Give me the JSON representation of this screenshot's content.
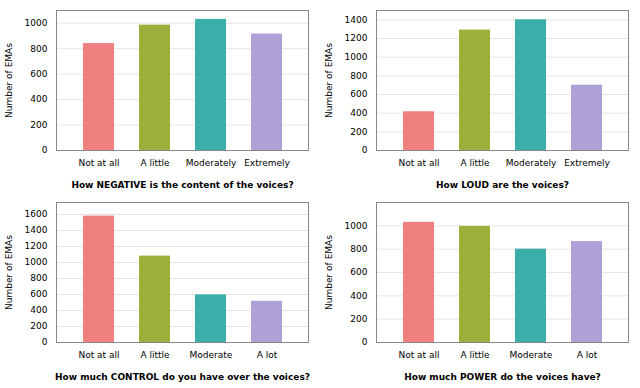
{
  "chart_data": [
    {
      "type": "bar",
      "categories": [
        "Not at all",
        "A little",
        "Moderately",
        "Extremely"
      ],
      "values": [
        840,
        985,
        1030,
        915
      ],
      "colors": [
        "#F08080",
        "#9DAF3A",
        "#3AAFA9",
        "#B0A0D8"
      ],
      "xlabel": "How NEGATIVE is the content of the voices?",
      "ylabel": "Number of EMAs",
      "ylim": [
        0,
        1100
      ],
      "yticks": [
        0,
        200,
        400,
        600,
        800,
        1000
      ],
      "grid": true
    },
    {
      "type": "bar",
      "categories": [
        "Not at all",
        "A little",
        "Moderately",
        "Extremely"
      ],
      "values": [
        415,
        1290,
        1400,
        700
      ],
      "colors": [
        "#F08080",
        "#9DAF3A",
        "#3AAFA9",
        "#B0A0D8"
      ],
      "xlabel": "How LOUD are the voices?",
      "ylabel": "Number of EMAs",
      "ylim": [
        0,
        1500
      ],
      "yticks": [
        0,
        200,
        400,
        600,
        800,
        1000,
        1200,
        1400
      ],
      "grid": true
    },
    {
      "type": "bar",
      "categories": [
        "Not at all",
        "A little",
        "Moderate",
        "A lot"
      ],
      "values": [
        1580,
        1080,
        595,
        515
      ],
      "colors": [
        "#F08080",
        "#9DAF3A",
        "#3AAFA9",
        "#B0A0D8"
      ],
      "xlabel": "How much CONTROL do you have over the voices?",
      "ylabel": "Number of EMAs",
      "ylim": [
        0,
        1750
      ],
      "yticks": [
        0,
        200,
        400,
        600,
        800,
        1000,
        1200,
        1400,
        1600
      ],
      "grid": true
    },
    {
      "type": "bar",
      "categories": [
        "Not at all",
        "A little",
        "Moderate",
        "A lot"
      ],
      "values": [
        1030,
        995,
        800,
        865
      ],
      "colors": [
        "#F08080",
        "#9DAF3A",
        "#3AAFA9",
        "#B0A0D8"
      ],
      "xlabel": "How much POWER do the voices have?",
      "ylabel": "Number of EMAs",
      "ylim": [
        0,
        1200
      ],
      "yticks": [
        0,
        200,
        400,
        600,
        800,
        1000
      ],
      "grid": true
    }
  ]
}
